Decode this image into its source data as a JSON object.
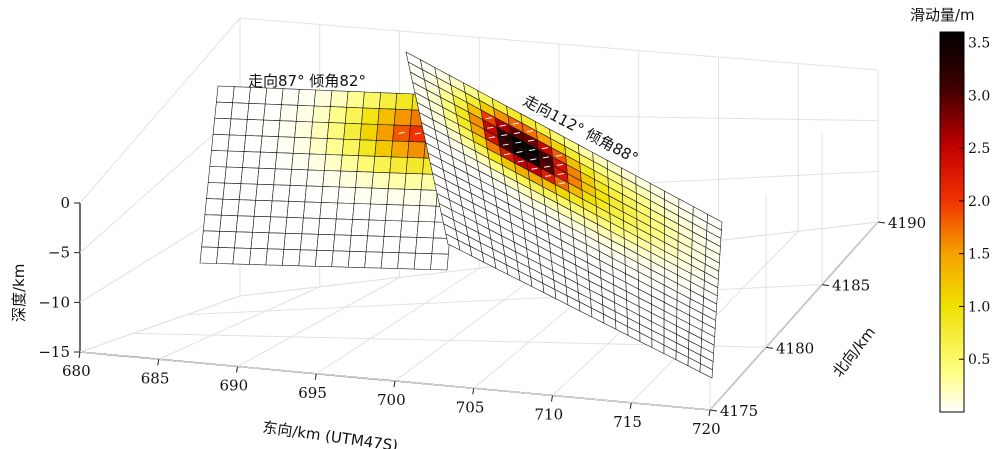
{
  "chart_data": {
    "type": "heatmap",
    "title": "",
    "colorbar": {
      "label": "滑动量/m",
      "range": [
        0,
        3.6
      ],
      "ticks": [
        "0.5",
        "1.0",
        "1.5",
        "2.0",
        "2.5",
        "3.0",
        "3.5"
      ],
      "colormap": [
        "#ffffff",
        "#ffff88",
        "#f0e000",
        "#f5a000",
        "#f03000",
        "#c00000",
        "#400000",
        "#000000"
      ]
    },
    "axes": {
      "x": {
        "label": "东向/km (UTM47S)",
        "range": [
          680,
          720
        ],
        "ticks": [
          "680",
          "685",
          "690",
          "695",
          "700",
          "705",
          "710",
          "715",
          "720"
        ]
      },
      "y": {
        "label": "北向/km",
        "range": [
          4175,
          4190
        ],
        "ticks": [
          "4175",
          "4180",
          "4185",
          "4190"
        ]
      },
      "z": {
        "label": "深度/km",
        "range": [
          -15,
          0
        ],
        "ticks": [
          "0",
          "−5",
          "−10",
          "−15"
        ]
      },
      "grid": true
    },
    "faults": [
      {
        "annotation": "走向87° 倾角82°",
        "strike_deg": 87,
        "dip_deg": 82,
        "rows": 11,
        "cols": 15,
        "peak_slip_m": 2.0,
        "peak_location": "upper right, near depth 2–4 km"
      },
      {
        "annotation": "走向112° 倾角88°",
        "strike_deg": 112,
        "dip_deg": 88,
        "rows": 19,
        "cols": 22,
        "peak_slip_m": 3.6,
        "peak_location": "shallow, about one third along strike from the western end"
      }
    ]
  }
}
